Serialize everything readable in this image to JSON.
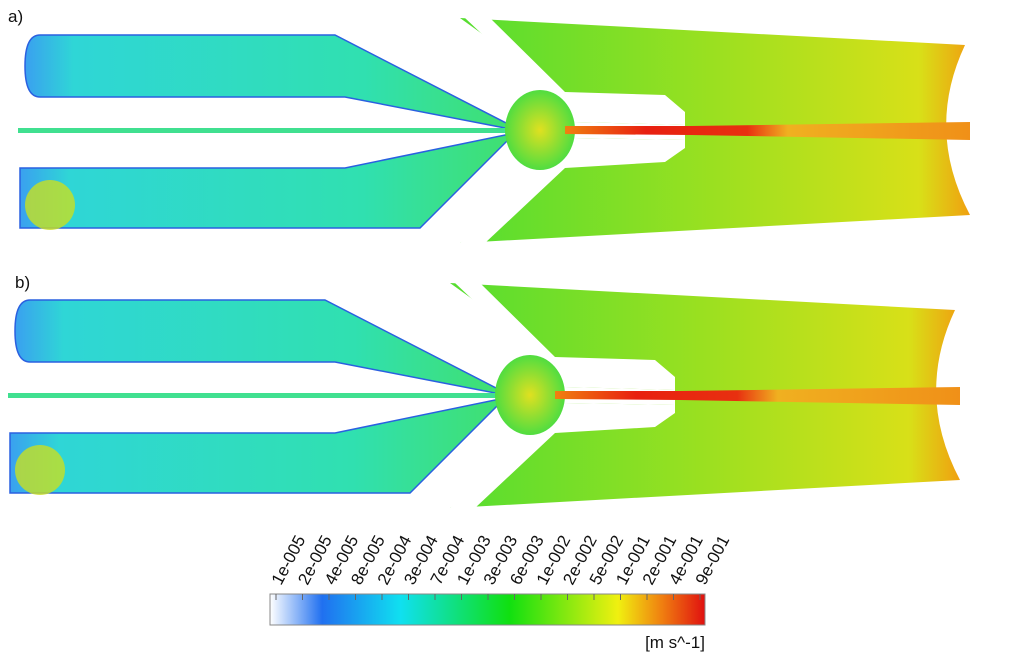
{
  "panels": [
    {
      "label": "a)"
    },
    {
      "label": "b)"
    }
  ],
  "colorbar": {
    "ticks": [
      "1e-005",
      "2e-005",
      "4e-005",
      "8e-005",
      "2e-004",
      "3e-004",
      "7e-004",
      "1e-003",
      "3e-003",
      "6e-003",
      "1e-002",
      "2e-002",
      "5e-002",
      "1e-001",
      "2e-001",
      "4e-001",
      "9e-001"
    ],
    "unit": "[m s^-1]"
  }
}
